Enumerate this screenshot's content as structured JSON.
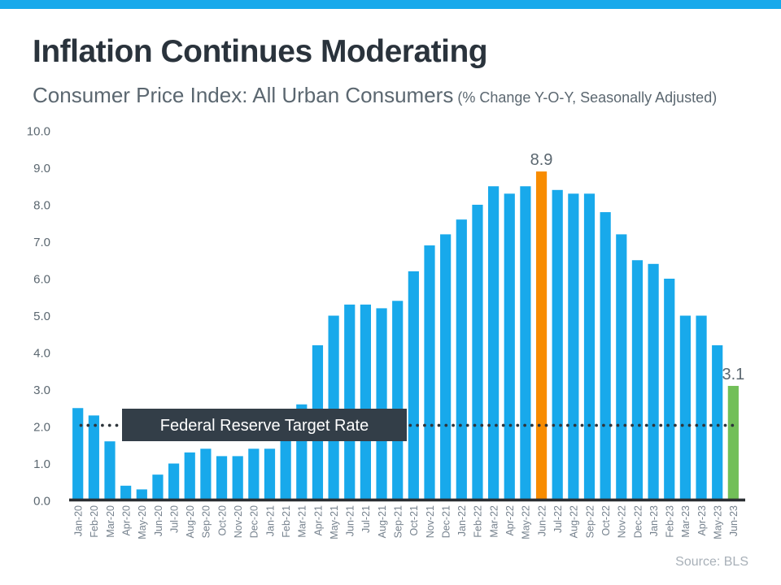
{
  "page": {
    "title": "Inflation Continues Moderating",
    "subtitle": "Consumer Price Index: All Urban Consumers",
    "subtitle_note": " (% Change Y-O-Y, Seasonally Adjusted)",
    "source": "Source: BLS"
  },
  "colors": {
    "banner_blue": "#18a9eb",
    "bar_blue": "#18a9eb",
    "highlight_orange": "#f88c00",
    "highlight_green": "#72bf58",
    "annotation_bg": "#333e48",
    "annotation_text": "#ffffff",
    "axis_line": "#2b2f33",
    "dotted_line": "#2e353b",
    "ytick_text": "#5b6770",
    "xtick_text": "#76828e",
    "title_text": "#2a333c",
    "subtitle_text": "#5b6770",
    "source_text": "#a8b0b8"
  },
  "chart_data": {
    "type": "bar",
    "title": "Consumer Price Index: All Urban Consumers (% Change Y-O-Y, Seasonally Adjusted)",
    "xlabel": "",
    "ylabel": "",
    "ylim": [
      0,
      10
    ],
    "ytick_labels": [
      "0.0",
      "1.0",
      "2.0",
      "3.0",
      "4.0",
      "5.0",
      "6.0",
      "7.0",
      "8.0",
      "9.0",
      "10.0"
    ],
    "grid": false,
    "legend": false,
    "categories": [
      "Jan-20",
      "Feb-20",
      "Mar-20",
      "Apr-20",
      "May-20",
      "Jun-20",
      "Jul-20",
      "Aug-20",
      "Sep-20",
      "Oct-20",
      "Nov-20",
      "Dec-20",
      "Jan-21",
      "Feb-21",
      "Mar-21",
      "Apr-21",
      "May-21",
      "Jun-21",
      "Jul-21",
      "Aug-21",
      "Sep-21",
      "Oct-21",
      "Nov-21",
      "Dec-21",
      "Jan-22",
      "Feb-22",
      "Mar-22",
      "Apr-22",
      "May-22",
      "Jun-22",
      "Jul-22",
      "Aug-22",
      "Sep-22",
      "Oct-22",
      "Nov-22",
      "Dec-22",
      "Jan-23",
      "Feb-23",
      "Mar-23",
      "Apr-23",
      "May-23",
      "Jun-23"
    ],
    "values": [
      2.5,
      2.3,
      1.6,
      0.4,
      0.3,
      0.7,
      1.0,
      1.3,
      1.4,
      1.2,
      1.2,
      1.4,
      1.4,
      1.7,
      2.6,
      4.2,
      5.0,
      5.3,
      5.3,
      5.2,
      5.4,
      6.2,
      6.9,
      7.2,
      7.6,
      8.0,
      8.5,
      8.3,
      8.5,
      8.9,
      8.4,
      8.3,
      8.3,
      7.8,
      7.2,
      6.5,
      6.4,
      6.0,
      5.0,
      5.0,
      4.2,
      3.1
    ],
    "highlights": {
      "Jun-22": "orange",
      "Jun-23": "green"
    },
    "annotations": [
      {
        "type": "reference-line",
        "label": "Federal Reserve Target Rate",
        "value": 2.0,
        "style": "dotted"
      },
      {
        "type": "data-label",
        "category": "Jun-22",
        "text": "8.9"
      },
      {
        "type": "data-label",
        "category": "Jun-23",
        "text": "3.1"
      }
    ]
  }
}
